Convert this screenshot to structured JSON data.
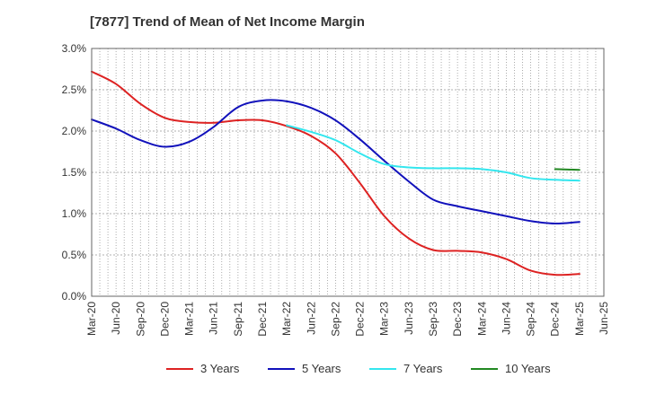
{
  "chart_data": {
    "type": "line",
    "title": "[7877]  Trend of Mean of Net Income Margin",
    "xlabel": "",
    "ylabel": "",
    "x_ticks": [
      "Mar-20",
      "Jun-20",
      "Sep-20",
      "Dec-20",
      "Mar-21",
      "Jun-21",
      "Sep-21",
      "Dec-21",
      "Mar-22",
      "Jun-22",
      "Sep-22",
      "Dec-22",
      "Mar-23",
      "Jun-23",
      "Sep-23",
      "Dec-23",
      "Mar-24",
      "Jun-24",
      "Sep-24",
      "Dec-24",
      "Mar-25",
      "Jun-25"
    ],
    "y_ticks": [
      "0.0%",
      "0.5%",
      "1.0%",
      "1.5%",
      "2.0%",
      "2.5%",
      "3.0%"
    ],
    "ylim": [
      0,
      3.0
    ],
    "grid": true,
    "legend_position": "bottom",
    "series": [
      {
        "name": "3 Years",
        "color": "#dd2222",
        "x": [
          "Mar-20",
          "Jun-20",
          "Sep-20",
          "Dec-20",
          "Mar-21",
          "Jun-21",
          "Sep-21",
          "Dec-21",
          "Mar-22",
          "Jun-22",
          "Sep-22",
          "Dec-22",
          "Mar-23",
          "Jun-23",
          "Sep-23",
          "Dec-23",
          "Mar-24",
          "Jun-24",
          "Sep-24",
          "Dec-24",
          "Mar-25"
        ],
        "values": [
          2.72,
          2.57,
          2.33,
          2.16,
          2.11,
          2.1,
          2.13,
          2.13,
          2.06,
          1.94,
          1.73,
          1.37,
          0.97,
          0.7,
          0.56,
          0.55,
          0.53,
          0.45,
          0.31,
          0.26,
          0.27
        ]
      },
      {
        "name": "5 Years",
        "color": "#1111bb",
        "x": [
          "Mar-20",
          "Jun-20",
          "Sep-20",
          "Dec-20",
          "Mar-21",
          "Jun-21",
          "Sep-21",
          "Dec-21",
          "Mar-22",
          "Jun-22",
          "Sep-22",
          "Dec-22",
          "Mar-23",
          "Jun-23",
          "Sep-23",
          "Dec-23",
          "Mar-24",
          "Jun-24",
          "Sep-24",
          "Dec-24",
          "Mar-25"
        ],
        "values": [
          2.14,
          2.03,
          1.89,
          1.81,
          1.87,
          2.05,
          2.29,
          2.37,
          2.36,
          2.28,
          2.13,
          1.9,
          1.64,
          1.39,
          1.17,
          1.09,
          1.03,
          0.97,
          0.91,
          0.88,
          0.9
        ]
      },
      {
        "name": "7 Years",
        "color": "#33e6ee",
        "x": [
          "Mar-22",
          "Jun-22",
          "Sep-22",
          "Dec-22",
          "Mar-23",
          "Jun-23",
          "Sep-23",
          "Dec-23",
          "Mar-24",
          "Jun-24",
          "Sep-24",
          "Dec-24",
          "Mar-25"
        ],
        "values": [
          2.07,
          1.99,
          1.89,
          1.73,
          1.6,
          1.56,
          1.55,
          1.55,
          1.54,
          1.5,
          1.43,
          1.41,
          1.4
        ]
      },
      {
        "name": "10 Years",
        "color": "#228822",
        "x": [
          "Dec-24",
          "Mar-25"
        ],
        "values": [
          1.54,
          1.53
        ]
      }
    ]
  }
}
